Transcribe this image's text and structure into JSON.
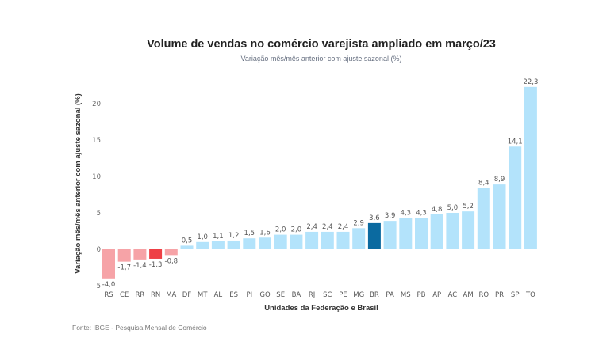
{
  "chart_data": {
    "type": "bar",
    "title": "Volume de vendas no comércio varejista ampliado em março/23",
    "subtitle": "Variação mês/mês anterior com ajuste sazonal (%)",
    "xlabel": "Unidades da Federação e Brasil",
    "ylabel": "Variação mês/mês anterior com ajuste sazonal (%)",
    "ylim": [
      -5,
      22.3
    ],
    "yticks": [
      -5,
      0,
      5,
      10,
      15,
      20
    ],
    "grid": false,
    "categories": [
      "RS",
      "CE",
      "RR",
      "RN",
      "MA",
      "DF",
      "MT",
      "AL",
      "ES",
      "PI",
      "GO",
      "SE",
      "BA",
      "RJ",
      "SC",
      "PE",
      "MG",
      "BR",
      "PA",
      "MS",
      "PB",
      "AP",
      "AC",
      "AM",
      "RO",
      "PR",
      "SP",
      "TO"
    ],
    "values": [
      -4.0,
      -1.7,
      -1.4,
      -1.3,
      -0.8,
      0.5,
      1.0,
      1.1,
      1.2,
      1.5,
      1.6,
      2.0,
      2.0,
      2.4,
      2.4,
      2.4,
      2.9,
      3.6,
      3.9,
      4.3,
      4.3,
      4.8,
      5.0,
      5.2,
      8.4,
      8.9,
      14.1,
      22.3
    ],
    "value_labels": [
      "-4,0",
      "-1,7",
      "-1,4",
      "-1,3",
      "-0,8",
      "0,5",
      "1,0",
      "1,1",
      "1,2",
      "1,5",
      "1,6",
      "2,0",
      "2,0",
      "2,4",
      "2,4",
      "2,4",
      "2,9",
      "3,6",
      "3,9",
      "4,3",
      "4,3",
      "4,8",
      "5,0",
      "5,2",
      "8,4",
      "8,9",
      "14,1",
      "22,3"
    ],
    "highlight": {
      "RN": "negative-highlight",
      "BR": "brazil"
    },
    "colors": {
      "positive": "#b3e3fb",
      "negative": "#f6a3a7",
      "negative_highlight": "#ee3f45",
      "brazil": "#0b6aa0"
    },
    "source": "Fonte: IBGE - Pesquisa Mensal de Comércio"
  }
}
